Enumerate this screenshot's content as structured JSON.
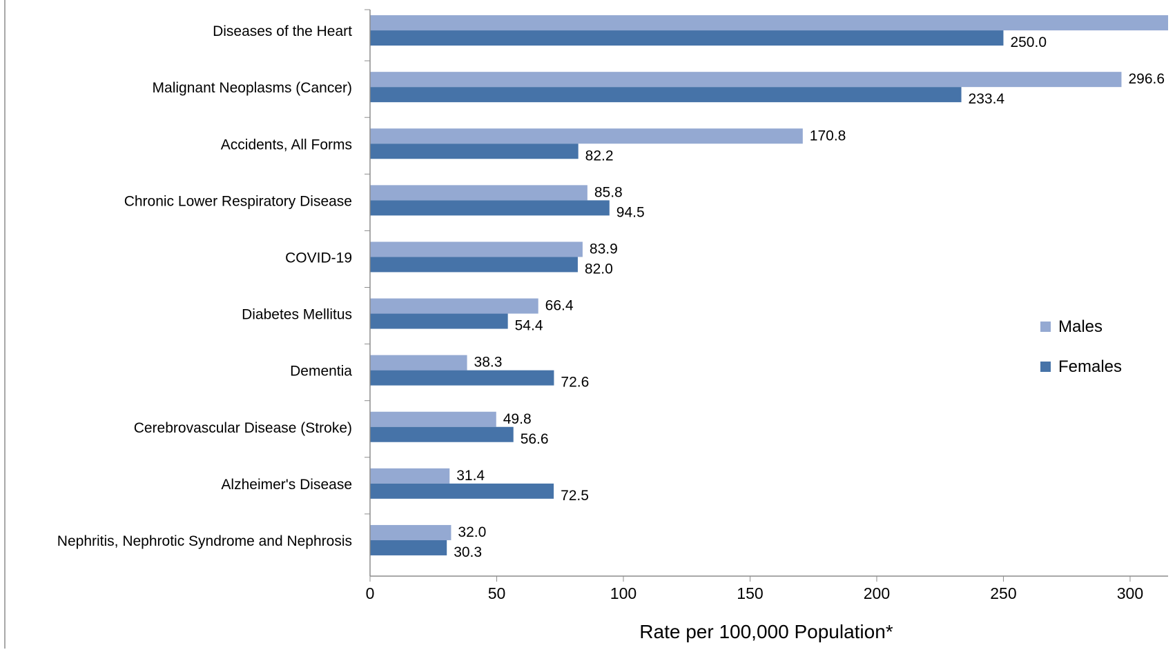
{
  "chart_data": {
    "type": "bar",
    "orientation": "horizontal",
    "title": "",
    "xlabel": "Rate per 100,000 Population*",
    "ylabel": "",
    "xlim": [
      0,
      315
    ],
    "xticks": [
      "0",
      "50",
      "100",
      "150",
      "200",
      "250",
      "300"
    ],
    "grid": false,
    "legend_position": "right",
    "categories": [
      "Diseases of the Heart",
      "Malignant Neoplasms (Cancer)",
      "Accidents, All Forms",
      "Chronic Lower Respiratory Disease",
      "COVID-19",
      "Diabetes Mellitus",
      "Dementia",
      "Cerebrovascular Disease (Stroke)",
      "Alzheimer's Disease",
      "Nephritis, Nephrotic Syndrome and Nephrosis"
    ],
    "series": [
      {
        "name": "Males",
        "color": "#94a9d2",
        "values": [
          330,
          296.6,
          170.8,
          85.8,
          83.9,
          66.4,
          38.3,
          49.8,
          31.4,
          32.0
        ],
        "labels": [
          "",
          "296.6",
          "170.8",
          "85.8",
          "83.9",
          "66.4",
          "38.3",
          "49.8",
          "31.4",
          "32.0"
        ]
      },
      {
        "name": "Females",
        "color": "#4673a8",
        "values": [
          250.0,
          233.4,
          82.2,
          94.5,
          82.0,
          54.4,
          72.6,
          56.6,
          72.5,
          30.3
        ],
        "labels": [
          "250.0",
          "233.4",
          "82.2",
          "94.5",
          "82.0",
          "54.4",
          "72.6",
          "56.6",
          "72.5",
          "30.3"
        ]
      }
    ]
  }
}
